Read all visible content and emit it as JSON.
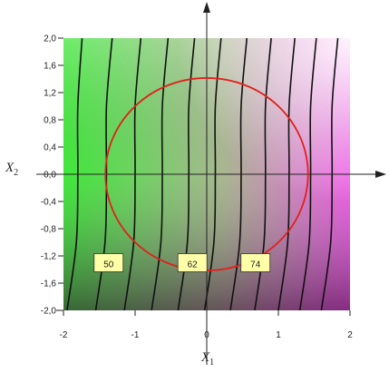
{
  "chart_data": {
    "type": "contour",
    "xlabel": [
      "X",
      "1"
    ],
    "ylabel": [
      "X",
      "2"
    ],
    "xlim": [
      -2,
      2
    ],
    "ylim": [
      -2,
      2
    ],
    "xticks": [
      -2,
      -1,
      0,
      1,
      2
    ],
    "yticks": [
      {
        "value": 2,
        "label": "2,0"
      },
      {
        "value": 1.6,
        "label": "1,6"
      },
      {
        "value": 1.2,
        "label": "1,2"
      },
      {
        "value": 0.8,
        "label": "0,8"
      },
      {
        "value": 0.4,
        "label": "0,4"
      },
      {
        "value": 0,
        "label": "0,0"
      },
      {
        "value": -0.4,
        "label": "-0,4"
      },
      {
        "value": -0.8,
        "label": "-0,8"
      },
      {
        "value": -1.2,
        "label": "-1,2"
      },
      {
        "value": -1.6,
        "label": "-1,6"
      },
      {
        "value": -2,
        "label": "-2,0"
      }
    ],
    "contour_y": [
      -2,
      -1,
      0,
      1,
      2
    ],
    "contours": [
      [
        -1.95,
        -1.82,
        -1.8,
        -1.8,
        -1.74
      ],
      [
        -1.55,
        -1.42,
        -1.4,
        -1.4,
        -1.32
      ],
      [
        -1.15,
        -1.02,
        -1.0,
        -1.0,
        -0.92
      ],
      [
        -0.77,
        -0.64,
        -0.62,
        -0.62,
        -0.54
      ],
      [
        -0.4,
        -0.27,
        -0.25,
        -0.25,
        -0.17
      ],
      [
        -0.03,
        0.1,
        0.12,
        0.12,
        0.2
      ],
      [
        0.33,
        0.46,
        0.48,
        0.48,
        0.56
      ],
      [
        0.67,
        0.8,
        0.82,
        0.82,
        0.9
      ],
      [
        1.0,
        1.13,
        1.15,
        1.15,
        1.23
      ],
      [
        1.3,
        1.43,
        1.45,
        1.45,
        1.53
      ],
      [
        1.6,
        1.73,
        1.75,
        1.75,
        1.83
      ]
    ],
    "contour_color": "#111111",
    "contour_labels": [
      {
        "value": 50,
        "x": -1.37,
        "y": -1.3
      },
      {
        "value": 62,
        "x": -0.2,
        "y": -1.3
      },
      {
        "value": 74,
        "x": 0.68,
        "y": -1.3
      }
    ],
    "circle": {
      "radius": 1.414,
      "color": "#e0201a"
    }
  }
}
